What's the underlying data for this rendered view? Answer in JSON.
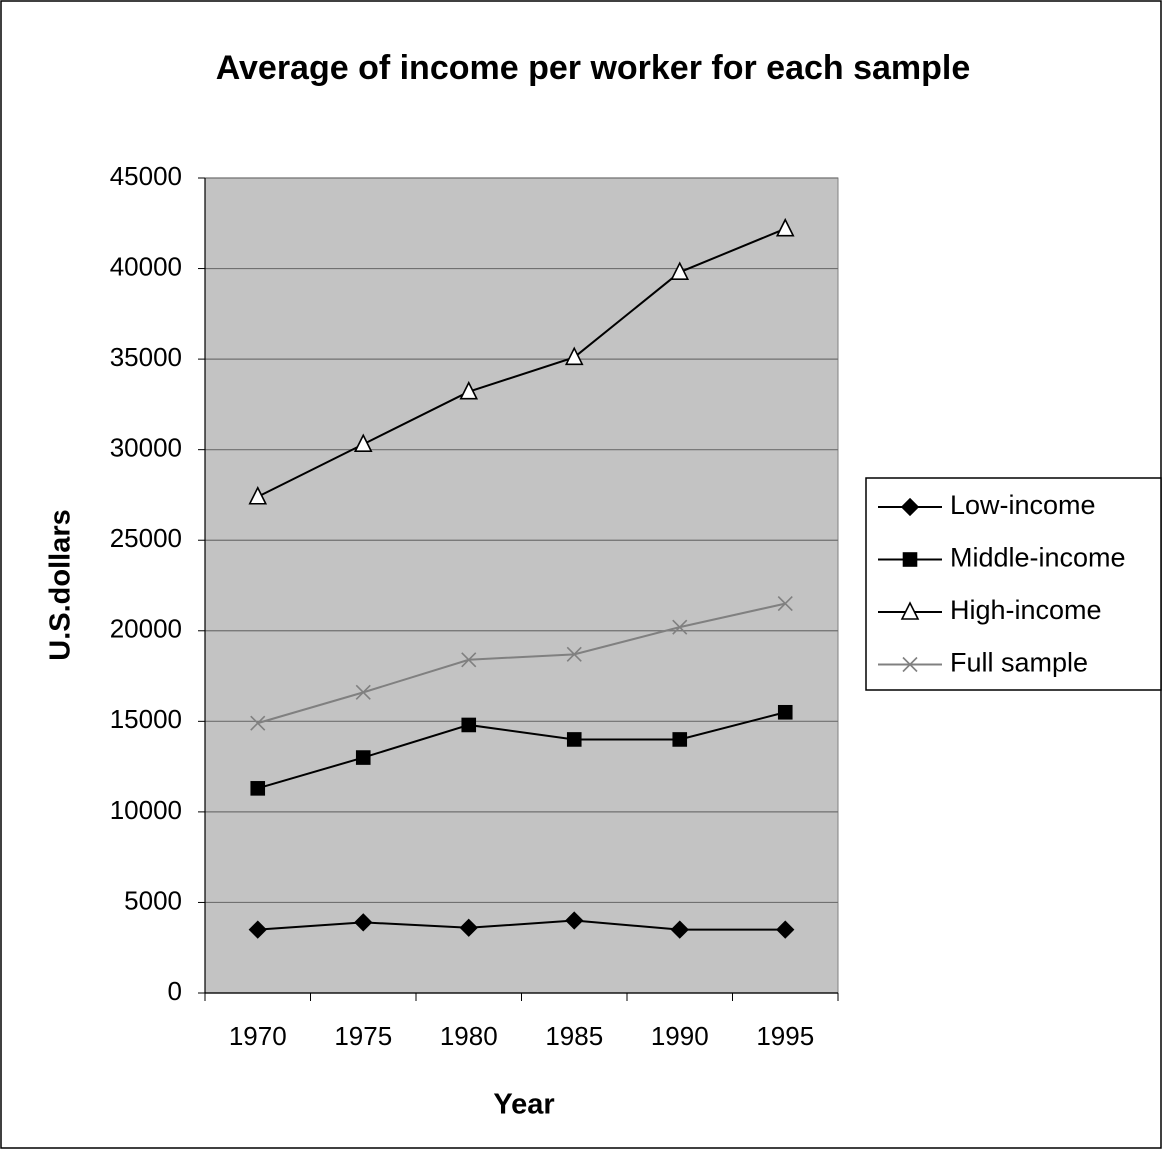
{
  "chart_data": {
    "type": "line",
    "title": "Average of income per worker for each sample",
    "x_label": "Year",
    "y_label": "U.S.dollars",
    "categories": [
      "1970",
      "1975",
      "1980",
      "1985",
      "1990",
      "1995"
    ],
    "series": [
      {
        "name": "Low-income",
        "color": "#000000",
        "marker": "diamond",
        "values": [
          3500,
          3900,
          3600,
          4000,
          3500,
          3500
        ]
      },
      {
        "name": "Middle-income",
        "color": "#000000",
        "marker": "square",
        "values": [
          11300,
          13000,
          14800,
          14000,
          14000,
          15500
        ]
      },
      {
        "name": "High-income",
        "color": "#000000",
        "marker": "triangle",
        "values": [
          27400,
          30300,
          33200,
          35100,
          39800,
          42200
        ]
      },
      {
        "name": "Full sample",
        "color": "#808080",
        "marker": "x",
        "values": [
          14900,
          16600,
          18400,
          18700,
          20200,
          21500
        ]
      }
    ],
    "ylim": [
      0,
      45000
    ],
    "yticks": [
      0,
      5000,
      10000,
      15000,
      20000,
      25000,
      30000,
      35000,
      40000,
      45000
    ],
    "grid": true,
    "legend": "right"
  }
}
